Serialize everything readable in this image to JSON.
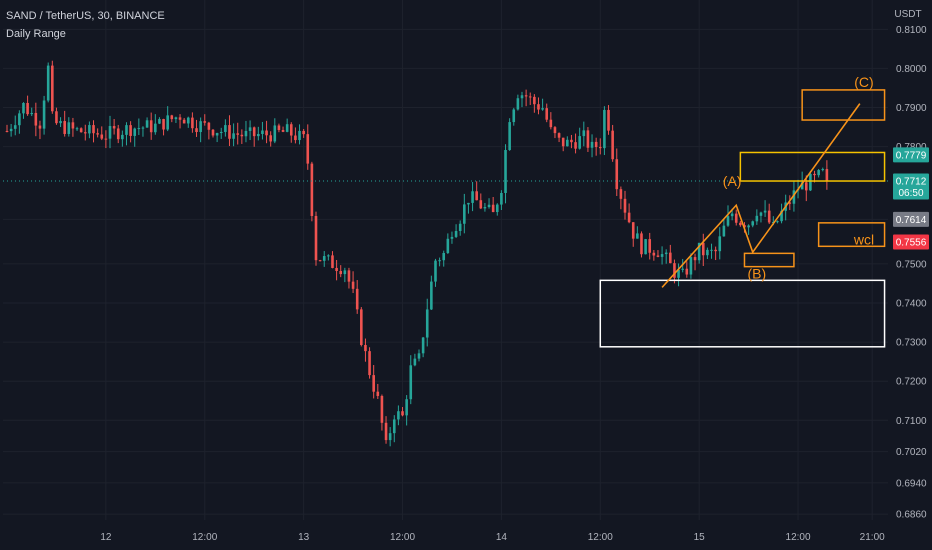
{
  "header": {
    "symbol_line": "SAND / TetherUS, 30, BINANCE",
    "indicator": "Daily Range"
  },
  "currency": "USDT",
  "colors": {
    "background": "#131722",
    "up": "#26a69a",
    "down": "#ef5350",
    "orange": "#f7931a",
    "box_white": "#ffffff",
    "gold": "#f5c300"
  },
  "chart_data": {
    "type": "candlestick",
    "title": "SAND / TetherUS, 30, BINANCE",
    "ylim": [
      0.6845,
      0.8175
    ],
    "y_ticks": [
      0.81,
      0.8,
      0.79,
      0.78,
      0.7614,
      0.75,
      0.74,
      0.73,
      0.72,
      0.71,
      0.702,
      0.694,
      0.686
    ],
    "y_tick_labels": [
      "0.8100",
      "0.8000",
      "0.7900",
      "0.7800",
      "0.7614",
      "0.7500",
      "0.7400",
      "0.7300",
      "0.7200",
      "0.7100",
      "0.7020",
      "0.6940",
      "0.6860"
    ],
    "x_tick_labels": [
      "12",
      "12:00",
      "13",
      "12:00",
      "14",
      "12:00",
      "15",
      "12:00",
      "21:00"
    ],
    "x_tick_bars": [
      24,
      48,
      72,
      96,
      120,
      144,
      168,
      192,
      210
    ],
    "n_bars": 200,
    "price_path": [
      [
        0,
        0.784
      ],
      [
        4,
        0.7905
      ],
      [
        8,
        0.7862
      ],
      [
        10,
        0.8
      ],
      [
        11,
        0.787
      ],
      [
        12,
        0.7858
      ],
      [
        16,
        0.7842
      ],
      [
        20,
        0.7836
      ],
      [
        24,
        0.783
      ],
      [
        30,
        0.7848
      ],
      [
        36,
        0.7852
      ],
      [
        42,
        0.788
      ],
      [
        46,
        0.7858
      ],
      [
        52,
        0.784
      ],
      [
        58,
        0.7828
      ],
      [
        64,
        0.7832
      ],
      [
        68,
        0.7838
      ],
      [
        72,
        0.7818
      ],
      [
        73,
        0.776
      ],
      [
        75,
        0.752
      ],
      [
        78,
        0.7505
      ],
      [
        82,
        0.749
      ],
      [
        84,
        0.742
      ],
      [
        86,
        0.731
      ],
      [
        88,
        0.7225
      ],
      [
        90,
        0.715
      ],
      [
        92,
        0.703
      ],
      [
        94,
        0.7118
      ],
      [
        96,
        0.7108
      ],
      [
        98,
        0.723
      ],
      [
        100,
        0.7255
      ],
      [
        102,
        0.739
      ],
      [
        104,
        0.751
      ],
      [
        106,
        0.7525
      ],
      [
        108,
        0.759
      ],
      [
        110,
        0.762
      ],
      [
        112,
        0.767
      ],
      [
        114,
        0.766
      ],
      [
        116,
        0.764
      ],
      [
        118,
        0.7625
      ],
      [
        120,
        0.77
      ],
      [
        122,
        0.788
      ],
      [
        124,
        0.794
      ],
      [
        126,
        0.793
      ],
      [
        128,
        0.791
      ],
      [
        130,
        0.79
      ],
      [
        132,
        0.7838
      ],
      [
        134,
        0.7812
      ],
      [
        136,
        0.7808
      ],
      [
        140,
        0.7822
      ],
      [
        142,
        0.7795
      ],
      [
        144,
        0.781
      ],
      [
        145,
        0.789
      ],
      [
        146,
        0.7858
      ],
      [
        148,
        0.7712
      ],
      [
        150,
        0.7642
      ],
      [
        152,
        0.758
      ],
      [
        154,
        0.7545
      ],
      [
        158,
        0.7535
      ],
      [
        160,
        0.751
      ],
      [
        162,
        0.748
      ],
      [
        164,
        0.7468
      ],
      [
        166,
        0.7505
      ],
      [
        168,
        0.7535
      ],
      [
        170,
        0.7525
      ],
      [
        172,
        0.753
      ],
      [
        174,
        0.759
      ],
      [
        176,
        0.763
      ],
      [
        178,
        0.761
      ],
      [
        180,
        0.7605
      ],
      [
        182,
        0.764
      ],
      [
        184,
        0.7622
      ],
      [
        186,
        0.759
      ],
      [
        188,
        0.763
      ],
      [
        190,
        0.766
      ],
      [
        192,
        0.7695
      ],
      [
        194,
        0.7705
      ],
      [
        196,
        0.7715
      ],
      [
        198,
        0.773
      ],
      [
        199,
        0.7712
      ]
    ],
    "current_price": {
      "value": 0.7712,
      "countdown": "06:50"
    },
    "price_labels": [
      {
        "value": 0.7779,
        "label": "0.7779",
        "color": "#26a69a"
      },
      {
        "value": 0.7712,
        "label": "0.7712",
        "color": "#26a69a"
      },
      {
        "value": 0.7614,
        "label": "0.7614",
        "color": "#787b86"
      },
      {
        "value": 0.7556,
        "label": "0.7556",
        "color": "#f23645"
      }
    ],
    "annotations": {
      "zones": [
        {
          "x0": 144,
          "x1": 213,
          "y0": 0.7458,
          "y1": 0.7288,
          "color": "#ffffff"
        },
        {
          "x0": 178,
          "x1": 213,
          "y0": 0.7785,
          "y1": 0.7712,
          "color": "#f5c300"
        },
        {
          "x0": 193,
          "x1": 213,
          "y0": 0.7945,
          "y1": 0.7868,
          "color": "#f7931a"
        },
        {
          "x0": 179,
          "x1": 191,
          "y0": 0.7527,
          "y1": 0.7493,
          "color": "#f7931a"
        },
        {
          "x0": 197,
          "x1": 213,
          "y0": 0.7605,
          "y1": 0.7545,
          "color": "#f7931a"
        }
      ],
      "wave_path": [
        [
          159,
          0.744
        ],
        [
          177,
          0.765
        ],
        [
          181,
          0.753
        ],
        [
          207,
          0.791
        ]
      ],
      "wave_labels": [
        {
          "text": "(A)",
          "x": 176,
          "y": 0.7712
        },
        {
          "text": "(B)",
          "x": 182,
          "y": 0.7476
        },
        {
          "text": "(C)",
          "x": 208,
          "y": 0.7965
        },
        {
          "text": "wcl",
          "x": 208,
          "y": 0.7562
        }
      ]
    }
  }
}
